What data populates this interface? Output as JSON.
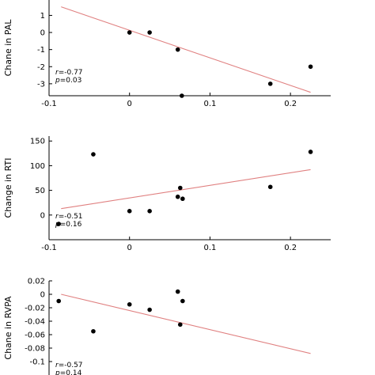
{
  "chart_data": [
    {
      "type": "scatter",
      "ylabel": "Chane in PAL",
      "xlim": [
        -0.1,
        0.25
      ],
      "ylim": [
        -3.7,
        1.9
      ],
      "xticks": [
        -0.1,
        0,
        0.1,
        0.2
      ],
      "xtick_labels": [
        "-0.1",
        "0",
        "0.1",
        "0.2"
      ],
      "yticks": [
        1,
        0,
        -1,
        -2,
        -3
      ],
      "ytick_labels": [
        "1",
        "0",
        "-1",
        "-2",
        "-3"
      ],
      "points": [
        {
          "x": 0.0,
          "y": 0.0
        },
        {
          "x": 0.025,
          "y": 0.0
        },
        {
          "x": 0.06,
          "y": -1.0
        },
        {
          "x": 0.065,
          "y": -3.7
        },
        {
          "x": 0.175,
          "y": -3.0
        },
        {
          "x": 0.225,
          "y": -2.0
        }
      ],
      "fit_line": {
        "x": [
          -0.085,
          0.225
        ],
        "y": [
          1.5,
          -3.5
        ]
      },
      "stats": {
        "r_label": "r",
        "r_value": "=-0.77",
        "p_label": "p",
        "p_value": "=0.03"
      }
    },
    {
      "type": "scatter",
      "ylabel": "Change in RTI",
      "xlim": [
        -0.1,
        0.25
      ],
      "ylim": [
        -50,
        160
      ],
      "xticks": [
        -0.1,
        0,
        0.1,
        0.2
      ],
      "xtick_labels": [
        "-0.1",
        "0",
        "0.1",
        "0.2"
      ],
      "yticks": [
        150,
        100,
        50,
        0
      ],
      "ytick_labels": [
        "150",
        "100",
        "50",
        "0"
      ],
      "points": [
        {
          "x": -0.088,
          "y": -18
        },
        {
          "x": -0.045,
          "y": 123
        },
        {
          "x": 0.0,
          "y": 8
        },
        {
          "x": 0.025,
          "y": 8
        },
        {
          "x": 0.06,
          "y": 37
        },
        {
          "x": 0.063,
          "y": 55
        },
        {
          "x": 0.066,
          "y": 33
        },
        {
          "x": 0.175,
          "y": 57
        },
        {
          "x": 0.225,
          "y": 128
        }
      ],
      "fit_line": {
        "x": [
          -0.085,
          0.225
        ],
        "y": [
          13,
          92
        ]
      },
      "stats": {
        "r_label": "r",
        "r_value": "=-0.51",
        "p_label": "p",
        "p_value": "=0.16"
      }
    },
    {
      "type": "scatter",
      "ylabel": "Chane in RVPA",
      "xlim": [
        -0.1,
        0.25
      ],
      "ylim": [
        -0.12,
        0.02
      ],
      "xticks": [],
      "xtick_labels": [],
      "yticks": [
        0.02,
        0,
        -0.02,
        -0.04,
        -0.06,
        -0.08,
        -0.1
      ],
      "ytick_labels": [
        "0.02",
        "0",
        "-0.02",
        "-0.04",
        "-0.06",
        "-0.08",
        "-0.1"
      ],
      "points": [
        {
          "x": -0.088,
          "y": -0.01
        },
        {
          "x": -0.045,
          "y": -0.055
        },
        {
          "x": 0.0,
          "y": -0.015
        },
        {
          "x": 0.025,
          "y": -0.023
        },
        {
          "x": 0.06,
          "y": 0.004
        },
        {
          "x": 0.063,
          "y": -0.045
        },
        {
          "x": 0.066,
          "y": -0.01
        }
      ],
      "fit_line": {
        "x": [
          -0.085,
          0.225
        ],
        "y": [
          0.0,
          -0.088
        ]
      },
      "stats": {
        "r_label": "r",
        "r_value": "=-0.57",
        "p_label": "p",
        "p_value": "=0.14"
      }
    }
  ]
}
